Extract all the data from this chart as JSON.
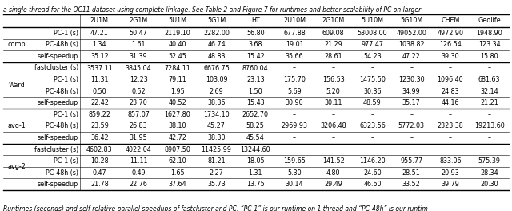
{
  "header_text": "a single thread for the OC11 dataset using complete linkage. See Table 2 and Figure 7 for runtimes and better scalability of PC on larger",
  "footer_text": "Runtimes (seconds) and self-relative parallel speedups of fastcluster and PC. “PC-1” is our runtime on 1 thread and “PC-48h” is our runtim",
  "col_headers": [
    "2U1M",
    "2G1M",
    "5U1M",
    "5G1M",
    "HT",
    "2U10M",
    "2G10M",
    "5U10M",
    "5G10M",
    "CHEM",
    "Geolife"
  ],
  "sections": [
    {
      "group_label": "comp",
      "rows": [
        {
          "label": "PC-1 (s)",
          "values": [
            "47.21",
            "50.47",
            "2119.10",
            "2282.00",
            "56.80",
            "677.88",
            "609.08",
            "53008.00",
            "49052.00",
            "4972.90",
            "1948.90"
          ]
        },
        {
          "label": "PC-48h (s)",
          "values": [
            "1.34",
            "1.61",
            "40.40",
            "46.74",
            "3.68",
            "19.01",
            "21.29",
            "977.47",
            "1038.82",
            "126.54",
            "123.34"
          ]
        },
        {
          "label": "self-speedup",
          "values": [
            "35.12",
            "31.39",
            "52.45",
            "48.83",
            "15.42",
            "35.66",
            "28.61",
            "54.23",
            "47.22",
            "39.30",
            "15.80"
          ]
        }
      ]
    },
    {
      "group_label": "Ward",
      "rows": [
        {
          "label": "fastcluster (s)",
          "values": [
            "3537.11",
            "3845.04",
            "7284.11",
            "6676.75",
            "8760.04",
            "–",
            "–",
            "–",
            "–",
            "–",
            "–"
          ]
        },
        {
          "label": "PC-1 (s)",
          "values": [
            "11.31",
            "12.23",
            "79.11",
            "103.09",
            "23.13",
            "175.70",
            "156.53",
            "1475.50",
            "1230.30",
            "1096.40",
            "681.63"
          ]
        },
        {
          "label": "PC-48h (s)",
          "values": [
            "0.50",
            "0.52",
            "1.95",
            "2.69",
            "1.50",
            "5.69",
            "5.20",
            "30.36",
            "34.99",
            "24.83",
            "32.14"
          ]
        },
        {
          "label": "self-speedup",
          "values": [
            "22.42",
            "23.70",
            "40.52",
            "38.36",
            "15.43",
            "30.90",
            "30.11",
            "48.59",
            "35.17",
            "44.16",
            "21.21"
          ]
        }
      ]
    },
    {
      "group_label": "avg-1",
      "rows": [
        {
          "label": "PC-1 (s)",
          "values": [
            "859.22",
            "857.07",
            "1627.80",
            "1734.10",
            "2652.70",
            "–",
            "–",
            "–",
            "–",
            "–",
            "–"
          ]
        },
        {
          "label": "PC-48h (s)",
          "values": [
            "23.59",
            "26.83",
            "38.10",
            "45.27",
            "58.25",
            "2969.93",
            "3206.48",
            "6323.56",
            "5772.03",
            "2323.38",
            "19213.60"
          ]
        },
        {
          "label": "self-speedup",
          "values": [
            "36.42",
            "31.95",
            "42.72",
            "38.30",
            "45.54",
            "–",
            "–",
            "–",
            "–",
            "–",
            "–"
          ]
        }
      ]
    },
    {
      "group_label": "avg-2",
      "rows": [
        {
          "label": "fastcluster (s)",
          "values": [
            "4602.83",
            "4022.04",
            "8907.50",
            "11425.99",
            "13244.60",
            "–",
            "–",
            "–",
            "–",
            "–",
            "–"
          ]
        },
        {
          "label": "PC-1 (s)",
          "values": [
            "10.28",
            "11.11",
            "62.10",
            "81.21",
            "18.05",
            "159.65",
            "141.52",
            "1146.20",
            "955.77",
            "833.06",
            "575.39"
          ]
        },
        {
          "label": "PC-48h (s)",
          "values": [
            "0.47",
            "0.49",
            "1.65",
            "2.27",
            "1.31",
            "5.30",
            "4.80",
            "24.60",
            "28.51",
            "20.93",
            "28.34"
          ]
        },
        {
          "label": "self-speedup",
          "values": [
            "21.78",
            "22.76",
            "37.64",
            "35.73",
            "13.75",
            "30.14",
            "29.49",
            "46.60",
            "33.52",
            "39.79",
            "20.30"
          ]
        }
      ]
    }
  ]
}
